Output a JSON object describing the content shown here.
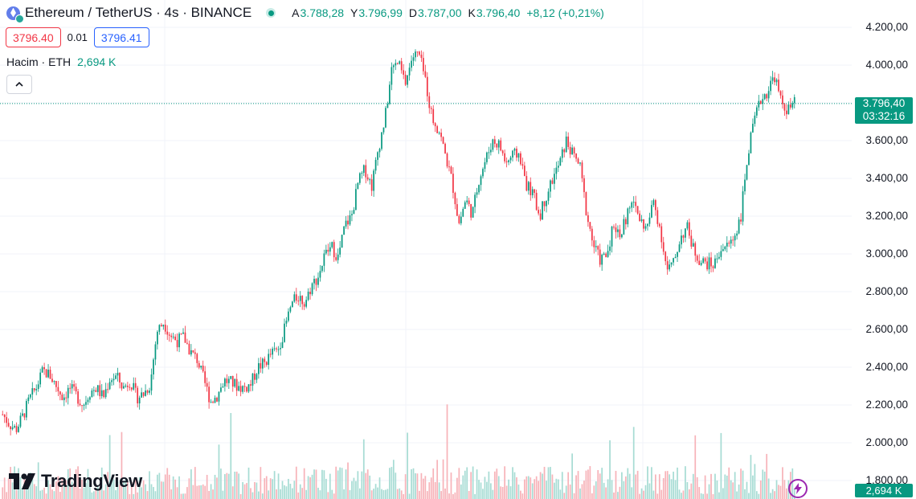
{
  "header": {
    "title": "Ethereum / TetherUS · 4s · BINANCE",
    "ohlc": [
      {
        "k": "A",
        "v": "3.788,28"
      },
      {
        "k": "Y",
        "v": "3.796,99"
      },
      {
        "k": "D",
        "v": "3.787,00"
      },
      {
        "k": "K",
        "v": "3.796,40"
      }
    ],
    "change": "+8,12 (+0,21%)"
  },
  "trade": {
    "sell": "3796.40",
    "spread": "0.01",
    "buy": "3796.41"
  },
  "volume": {
    "label": "Hacim · ETH",
    "value": "2,694 K"
  },
  "price_tag": {
    "price": "3.796,40",
    "countdown": "03:32:16"
  },
  "brand": {
    "name": "TradingView"
  },
  "colors": {
    "up": "#089981",
    "down": "#f23645",
    "volume_up": "#a7dcd4",
    "volume_down": "#f7b3b9"
  },
  "chart_data": {
    "type": "candlestick",
    "symbol": "ETHUSDT",
    "interval": "4s",
    "yaxis_ticks": [
      "4.200,00",
      "4.000,00",
      "3.800,00",
      "3.600,00",
      "3.400,00",
      "3.200,00",
      "3.000,00",
      "2.800,00",
      "2.600,00",
      "2.400,00",
      "2.200,00",
      "2.000,00",
      "1.800,00"
    ],
    "ylim": [
      1800,
      4200
    ],
    "last_price": 3796.4,
    "last_volume": "2,694 K",
    "close_path": [
      2150,
      2100,
      2070,
      2140,
      2230,
      2290,
      2380,
      2360,
      2300,
      2240,
      2290,
      2250,
      2200,
      2270,
      2290,
      2240,
      2340,
      2350,
      2290,
      2330,
      2240,
      2260,
      2310,
      2590,
      2640,
      2570,
      2540,
      2560,
      2480,
      2440,
      2330,
      2220,
      2250,
      2330,
      2320,
      2300,
      2290,
      2310,
      2400,
      2420,
      2470,
      2490,
      2600,
      2730,
      2780,
      2740,
      2830,
      2880,
      2990,
      3040,
      2980,
      3150,
      3200,
      3380,
      3450,
      3360,
      3560,
      3720,
      3980,
      4010,
      3900,
      4040,
      4060,
      3920,
      3720,
      3660,
      3520,
      3380,
      3160,
      3290,
      3210,
      3400,
      3500,
      3600,
      3580,
      3480,
      3520,
      3530,
      3370,
      3320,
      3200,
      3310,
      3400,
      3480,
      3600,
      3520,
      3470,
      3220,
      3050,
      2970,
      2990,
      3160,
      3100,
      3200,
      3280,
      3180,
      3130,
      3280,
      3130,
      2910,
      2950,
      3090,
      3140,
      3020,
      2960,
      2950,
      2940,
      3030,
      3040,
      3090,
      3200,
      3520,
      3700,
      3820,
      3860,
      3950,
      3800,
      3760,
      3796
    ],
    "volume_note": "volume histogram along bottom, colored by candle direction"
  }
}
